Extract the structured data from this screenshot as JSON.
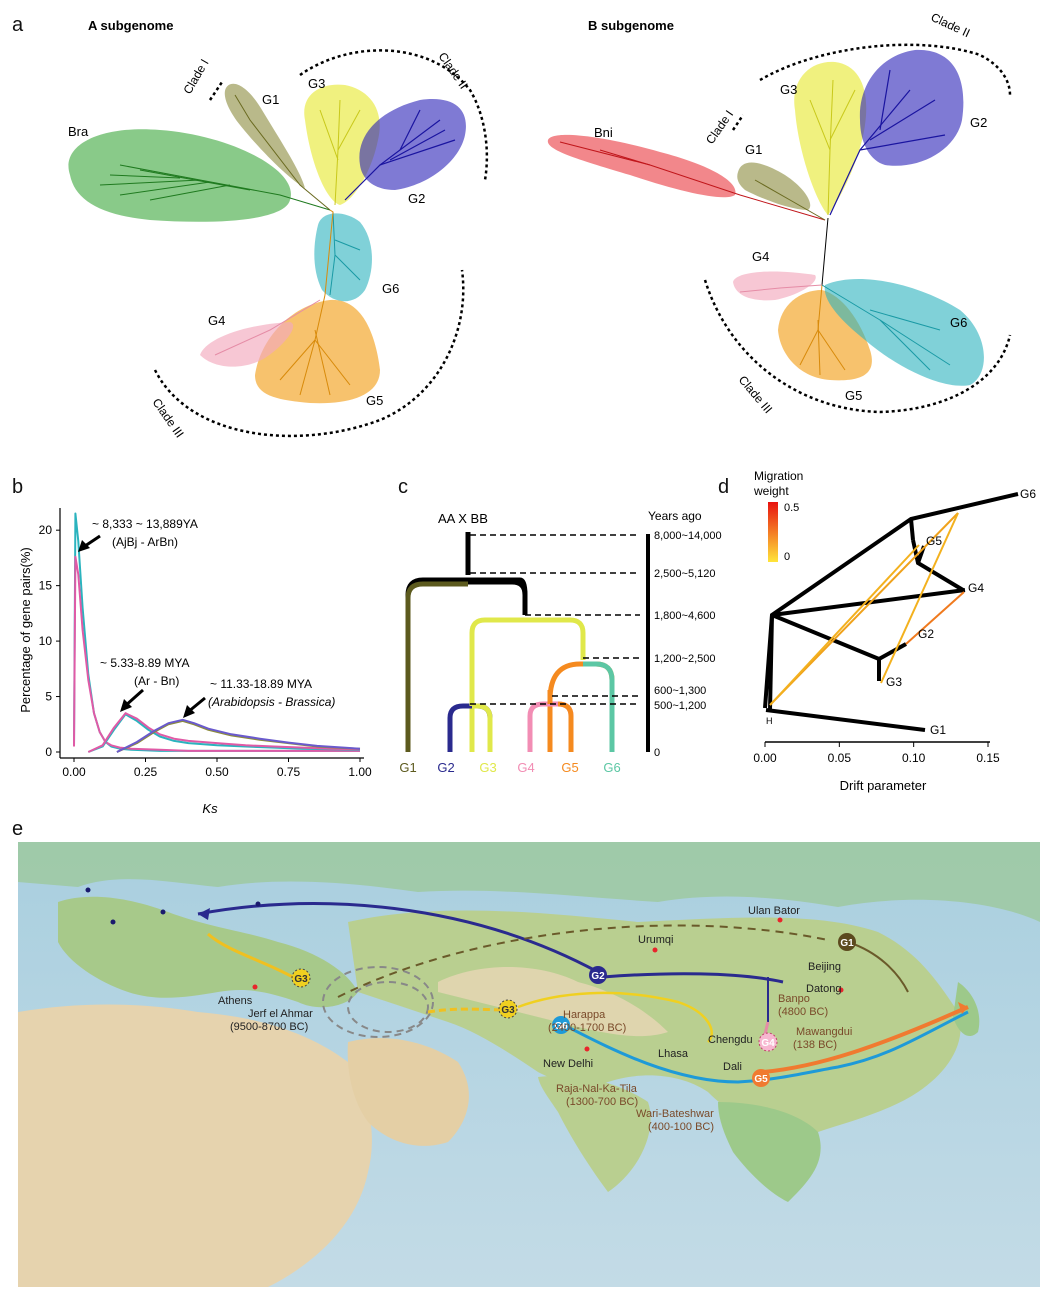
{
  "panel_labels": {
    "a": "a",
    "b": "b",
    "c": "c",
    "d": "d",
    "e": "e"
  },
  "panel_a": {
    "a_title": "A subgenome",
    "b_title": "B subgenome",
    "a_labels": {
      "bra": "Bra",
      "g1": "G1",
      "g2": "G2",
      "g3": "G3",
      "g4": "G4",
      "g5": "G5",
      "g6": "G6",
      "clade1": "Clade I",
      "clade2": "Clade II",
      "clade3": "Clade III"
    },
    "b_labels": {
      "bni": "Bni",
      "g1": "G1",
      "g2": "G2",
      "g3": "G3",
      "g4": "G4",
      "g5": "G5",
      "g6": "G6",
      "clade1": "Clade I",
      "clade2": "Clade II",
      "clade3": "Clade III"
    },
    "colors": {
      "bra": "#3aa63a",
      "bni": "#e8252b",
      "g1": "#8b8a3c",
      "g2": "#2a22b8",
      "g3": "#e8ea3a",
      "g4": "#f2a9bd",
      "g5": "#f2a21e",
      "g6": "#2bb3be"
    }
  },
  "chart_data": [
    {
      "type": "line",
      "panel": "b",
      "xlabel": "Ks",
      "ylabel": "Percentage of gene pairs(%)",
      "xlim": [
        0,
        1.0
      ],
      "ylim": [
        0,
        22
      ],
      "xticks": [
        "0.00",
        "0.25",
        "0.50",
        "0.75",
        "1.00"
      ],
      "yticks": [
        "0",
        "5",
        "10",
        "15",
        "20"
      ],
      "series": [
        {
          "color": "#2bb3be",
          "x": [
            0,
            0.005,
            0.015,
            0.03,
            0.05,
            0.07,
            0.09,
            0.11,
            0.13,
            0.16,
            0.2,
            0.3,
            0.4,
            0.5,
            0.6,
            0.7,
            0.8,
            0.9,
            1.0
          ],
          "y": [
            0.5,
            21.5,
            19,
            13,
            7,
            3.5,
            1.8,
            0.9,
            0.5,
            0.3,
            0.2,
            0.1,
            0.1,
            0.1,
            0.1,
            0.1,
            0.1,
            0.1,
            0.1
          ]
        },
        {
          "color": "#e05aa6",
          "x": [
            0,
            0.005,
            0.015,
            0.03,
            0.05,
            0.07,
            0.09,
            0.11,
            0.13,
            0.16,
            0.2,
            0.3,
            0.4,
            0.5,
            0.6,
            0.7,
            0.8,
            0.9,
            1.0
          ],
          "y": [
            0.5,
            17.6,
            16,
            11,
            6.5,
            3.5,
            1.8,
            0.9,
            0.6,
            0.4,
            0.3,
            0.2,
            0.1,
            0.1,
            0.1,
            0.1,
            0.1,
            0.1,
            0.1
          ]
        },
        {
          "color": "#2bb3be",
          "x": [
            0.05,
            0.1,
            0.14,
            0.18,
            0.22,
            0.26,
            0.3,
            0.35,
            0.4,
            0.5,
            0.6,
            0.7,
            0.8,
            0.9,
            1.0
          ],
          "y": [
            0,
            0.5,
            2,
            3.4,
            2.8,
            2.0,
            1.4,
            1.0,
            0.8,
            0.6,
            0.5,
            0.4,
            0.3,
            0.25,
            0.2
          ]
        },
        {
          "color": "#e05aa6",
          "x": [
            0.05,
            0.1,
            0.14,
            0.18,
            0.22,
            0.26,
            0.3,
            0.35,
            0.4,
            0.5,
            0.6,
            0.7,
            0.8,
            0.9,
            1.0
          ],
          "y": [
            0,
            0.6,
            2.2,
            3.5,
            3.0,
            2.2,
            1.6,
            1.2,
            1.0,
            0.8,
            0.6,
            0.5,
            0.4,
            0.3,
            0.25
          ]
        },
        {
          "color": "#8c8c3a",
          "x": [
            0.15,
            0.22,
            0.28,
            0.33,
            0.38,
            0.42,
            0.47,
            0.55,
            0.65,
            0.75,
            0.85,
            0.95,
            1.0
          ],
          "y": [
            0,
            0.8,
            1.8,
            2.5,
            2.8,
            2.5,
            2.0,
            1.5,
            1.1,
            0.8,
            0.5,
            0.35,
            0.3
          ]
        },
        {
          "color": "#6a5acd",
          "x": [
            0.15,
            0.22,
            0.28,
            0.33,
            0.38,
            0.42,
            0.47,
            0.55,
            0.65,
            0.75,
            0.85,
            0.95,
            1.0
          ],
          "y": [
            0,
            0.9,
            1.9,
            2.6,
            2.9,
            2.6,
            2.1,
            1.6,
            1.2,
            0.85,
            0.55,
            0.38,
            0.3
          ]
        }
      ],
      "annotations": [
        {
          "line1": "~ 8,333 ~ 13,889YA",
          "line2": "(AjBj - ArBn)"
        },
        {
          "line1": "~ 5.33-8.89 MYA",
          "line2": "(Ar - Bn)"
        },
        {
          "line1": "~ 11.33-18.89 MYA",
          "line2": "(Arabidopsis - Brassica)"
        }
      ]
    },
    {
      "type": "table",
      "panel": "c",
      "title": "AA X BB",
      "time_header": "Years ago",
      "times": [
        "8,000~14,000",
        "2,500~5,120",
        "1,800~4,600",
        "1,200~2,500",
        "600~1,300",
        "500~1,200",
        "0"
      ],
      "groups": [
        "G1",
        "G2",
        "G3",
        "G4",
        "G5",
        "G6"
      ],
      "group_colors": [
        "#5c5a1e",
        "#2a2a8e",
        "#e0e84a",
        "#f28db4",
        "#f58a1f",
        "#5cc7a4"
      ]
    },
    {
      "type": "scatter",
      "panel": "d",
      "legend_title": "Migration weight",
      "legend_max": "0.5",
      "legend_min": "0",
      "xlabel": "Drift parameter",
      "xticks": [
        "0.00",
        "0.05",
        "0.10",
        "0.15"
      ],
      "nodes": [
        "G6",
        "G5",
        "G4",
        "G2",
        "G3",
        "H",
        "G1"
      ]
    }
  ],
  "panel_e": {
    "places": [
      "Ulan Bator",
      "Urumqi",
      "Beijing",
      "Datong",
      "Banpo",
      "(4800 BC)",
      "Chengdu",
      "Mawangdui",
      "(138 BC)",
      "Dali",
      "Lhasa",
      "New Delhi",
      "Harappa",
      "(2400-1700 BC)",
      "Raja-Nal-Ka-Tila",
      "(1300-700 BC)",
      "Wari-Bateshwar",
      "(400-100 BC)",
      "Athens",
      "Jerf el Ahmar",
      "(9500-8700 BC)"
    ],
    "nodes": [
      "G1",
      "G2",
      "G3",
      "G3",
      "G6",
      "G4",
      "G5"
    ]
  }
}
